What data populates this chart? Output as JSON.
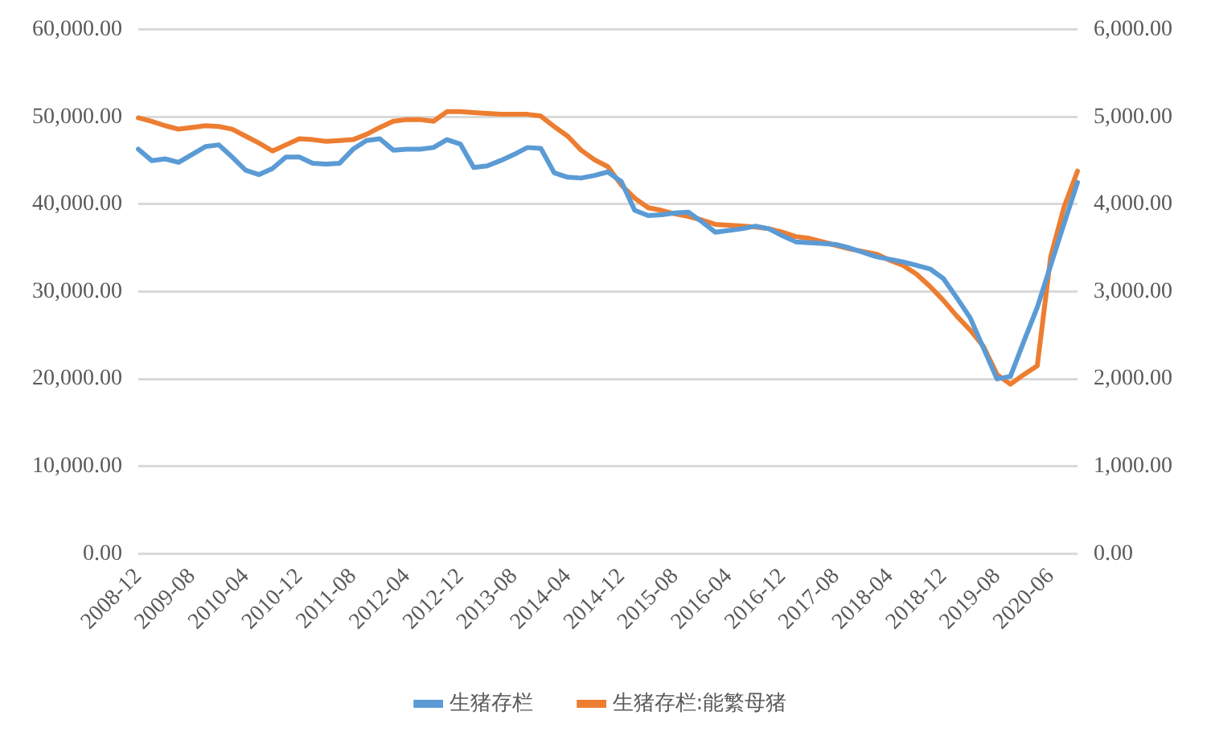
{
  "chart_data": {
    "type": "line",
    "categories": [
      "2008-12",
      null,
      null,
      null,
      "2009-08",
      null,
      null,
      null,
      "2010-04",
      null,
      null,
      null,
      "2010-12",
      null,
      null,
      null,
      "2011-08",
      null,
      null,
      null,
      "2012-04",
      null,
      null,
      null,
      "2012-12",
      null,
      null,
      null,
      "2013-08",
      null,
      null,
      null,
      "2014-04",
      null,
      null,
      null,
      "2014-12",
      null,
      null,
      null,
      "2015-08",
      null,
      null,
      null,
      "2016-04",
      null,
      null,
      null,
      "2016-12",
      null,
      null,
      null,
      "2017-08",
      null,
      null,
      null,
      "2018-04",
      null,
      null,
      null,
      "2018-12",
      null,
      null,
      null,
      "2019-08",
      null,
      null,
      null,
      "2020-06",
      null,
      null
    ],
    "series": [
      {
        "name": "生猪存栏",
        "color": "#5b9bd5",
        "axis": "y",
        "values": [
          46300,
          45000,
          45200,
          44800,
          45700,
          46600,
          46800,
          45400,
          43900,
          43400,
          44100,
          45400,
          45400,
          44700,
          44600,
          44700,
          46300,
          47300,
          47500,
          46200,
          46300,
          46300,
          46500,
          47400,
          46900,
          44200,
          44400,
          45000,
          45700,
          46500,
          46400,
          43600,
          43100,
          43000,
          43300,
          43700,
          42600,
          39300,
          38700,
          38800,
          39000,
          39100,
          38000,
          36800,
          37000,
          37200,
          37500,
          37200,
          36400,
          35700,
          35600,
          35500,
          35400,
          35000,
          34500,
          34000,
          33700,
          33400,
          33000,
          32600,
          31500,
          29300,
          27000,
          23500,
          20000,
          20300,
          24300,
          28200,
          33000,
          37800,
          42500
        ]
      },
      {
        "name": "生猪存栏:能繁母猪",
        "color": "#ed7d31",
        "axis": "y2",
        "values": [
          4990,
          4950,
          4900,
          4860,
          4880,
          4900,
          4890,
          4860,
          4780,
          4700,
          4610,
          4680,
          4750,
          4740,
          4720,
          4730,
          4740,
          4800,
          4880,
          4950,
          4970,
          4970,
          4950,
          5060,
          5060,
          5050,
          5040,
          5030,
          5030,
          5030,
          5010,
          4890,
          4780,
          4620,
          4510,
          4430,
          4220,
          4070,
          3960,
          3930,
          3890,
          3860,
          3820,
          3770,
          3760,
          3750,
          3740,
          3720,
          3680,
          3630,
          3610,
          3570,
          3530,
          3490,
          3460,
          3430,
          3360,
          3300,
          3200,
          3060,
          2900,
          2720,
          2560,
          2370,
          2050,
          1940,
          2050,
          2150,
          3400,
          3970,
          4380
        ]
      }
    ],
    "ylim": [
      0,
      60000
    ],
    "yticks": [
      {
        "value": 0,
        "label": "0.00"
      },
      {
        "value": 10000,
        "label": "10,000.00"
      },
      {
        "value": 20000,
        "label": "20,000.00"
      },
      {
        "value": 30000,
        "label": "30,000.00"
      },
      {
        "value": 40000,
        "label": "40,000.00"
      },
      {
        "value": 50000,
        "label": "50,000.00"
      },
      {
        "value": 60000,
        "label": "60,000.00"
      }
    ],
    "y2lim": [
      0,
      6000
    ],
    "y2ticks": [
      {
        "value": 0,
        "label": "0.00"
      },
      {
        "value": 1000,
        "label": "1,000.00"
      },
      {
        "value": 2000,
        "label": "2,000.00"
      },
      {
        "value": 3000,
        "label": "3,000.00"
      },
      {
        "value": 4000,
        "label": "4,000.00"
      },
      {
        "value": 5000,
        "label": "5,000.00"
      },
      {
        "value": 6000,
        "label": "6,000.00"
      }
    ],
    "grid": "y",
    "legend": "bottom",
    "marker": "none",
    "line_style": "solid"
  }
}
